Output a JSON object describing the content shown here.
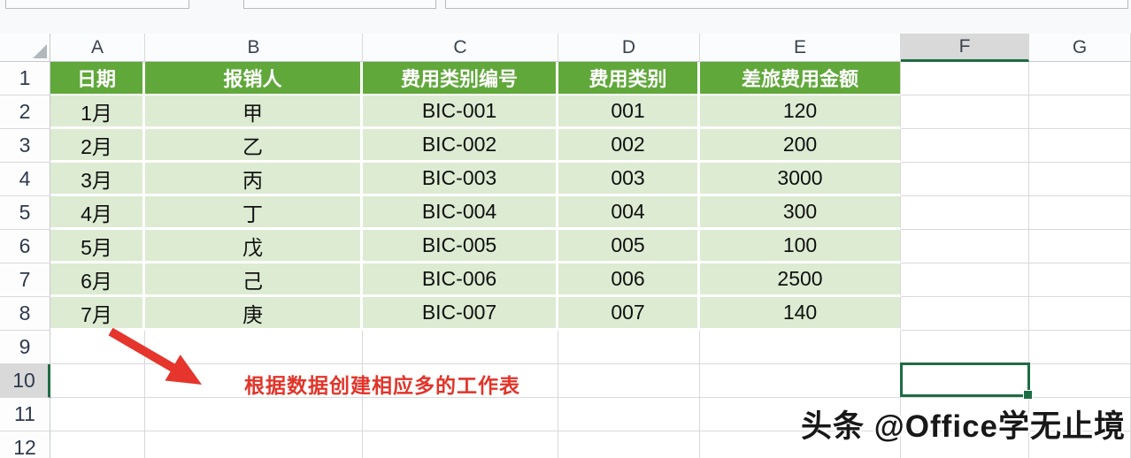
{
  "top_bar": {
    "name_box_value": "",
    "function_box_value": "",
    "formula_bar_value": ""
  },
  "column_headers": [
    "A",
    "B",
    "C",
    "D",
    "E",
    "F",
    "G"
  ],
  "row_headers": [
    "1",
    "2",
    "3",
    "4",
    "5",
    "6",
    "7",
    "8",
    "9",
    "10",
    "11",
    "12"
  ],
  "selection": {
    "active_cell": "F10",
    "selected_column": "F",
    "selected_row": "10"
  },
  "sheet_table": {
    "headers": [
      "日期",
      "报销人",
      "费用类别编号",
      "费用类别",
      "差旅费用金额"
    ],
    "rows": [
      [
        "1月",
        "甲",
        "BIC-001",
        "001",
        "120"
      ],
      [
        "2月",
        "乙",
        "BIC-002",
        "002",
        "200"
      ],
      [
        "3月",
        "丙",
        "BIC-003",
        "003",
        "3000"
      ],
      [
        "4月",
        "丁",
        "BIC-004",
        "004",
        "300"
      ],
      [
        "5月",
        "戊",
        "BIC-005",
        "005",
        "100"
      ],
      [
        "6月",
        "己",
        "BIC-006",
        "006",
        "2500"
      ],
      [
        "7月",
        "庚",
        "BIC-007",
        "007",
        "140"
      ]
    ]
  },
  "annotation": {
    "arrow_note": "根据数据创建相应多的工作表"
  },
  "watermark": {
    "text": "头条 @Office学无止境"
  },
  "colors": {
    "header_fill": "#61a83b",
    "data_fill": "#dcebd2",
    "selection_green": "#1e6c44",
    "annotation_red": "#e23429",
    "grid_line": "#d9d9d9"
  }
}
